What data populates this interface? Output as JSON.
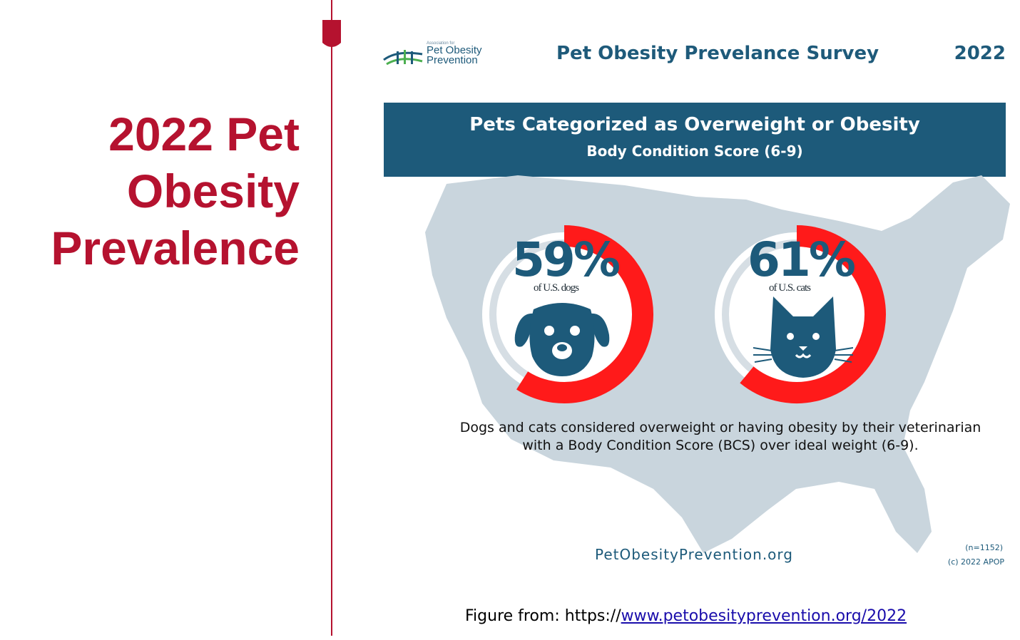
{
  "slide": {
    "title_lines": [
      "2022 Pet",
      "Obesity",
      "Prevalence"
    ]
  },
  "infographic": {
    "logo": {
      "small": "Association for",
      "line1": "Pet Obesity",
      "line2": "Prevention"
    },
    "survey_title": "Pet Obesity Prevelance Survey",
    "year": "2022",
    "banner_title": "Pets Categorized as Overweight or Obesity",
    "banner_subtitle": "Body Condition Score (6-9)",
    "dogs": {
      "percent": "59%",
      "label": "of U.S. dogs",
      "value": 0.59,
      "icon": "dog-icon"
    },
    "cats": {
      "percent": "61%",
      "label": "of U.S. cats",
      "value": 0.61,
      "icon": "cat-icon"
    },
    "description_line1": "Dogs and cats considered overweight or having obesity by their veterinarian",
    "description_line2": "with a Body Condition Score (BCS) over ideal weight (6-9).",
    "website": "PetObesityPrevention.org",
    "n_count": "(n=1152)",
    "copyright": "(c) 2022 APOP",
    "colors": {
      "accent_red": "#ff1a1a",
      "navy": "#1d5a7a",
      "map_gray": "#c9d5dd",
      "title_red": "#b5122f"
    }
  },
  "caption": {
    "prefix": "Figure from: https://",
    "link": "www.petobesityprevention.org/2022"
  }
}
